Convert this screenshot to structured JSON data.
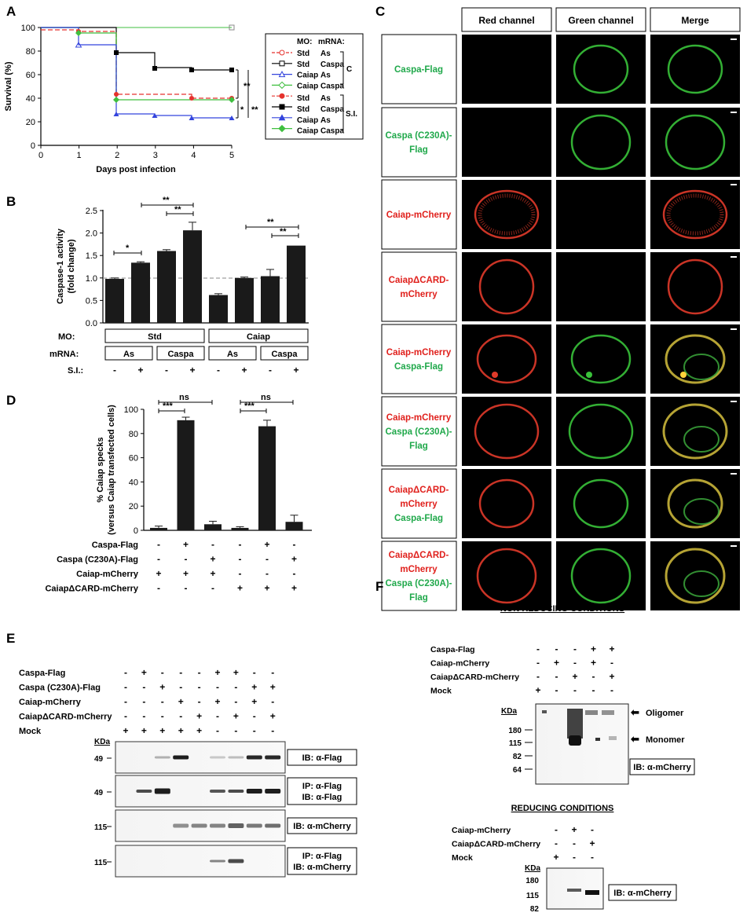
{
  "panels": {
    "A": "A",
    "B": "B",
    "C": "C",
    "D": "D",
    "E": "E",
    "F": "F"
  },
  "panelA": {
    "ylabel": "Survival (%)",
    "xlabel": "Days post infection",
    "xticks": [
      "0",
      "1",
      "2",
      "3",
      "4",
      "5"
    ],
    "yticks": [
      "0",
      "20",
      "40",
      "60",
      "80",
      "100"
    ],
    "legend_header": {
      "mo": "MO:",
      "mrna": "mRNA:"
    },
    "legend": [
      {
        "mo": "Std",
        "mrna": "As"
      },
      {
        "mo": "Std",
        "mrna": "Caspa"
      },
      {
        "mo": "Caiap",
        "mrna": "As"
      },
      {
        "mo": "Caiap",
        "mrna": "Caspa"
      },
      {
        "mo": "Std",
        "mrna": "As"
      },
      {
        "mo": "Std",
        "mrna": "Caspa"
      },
      {
        "mo": "Caiap",
        "mrna": "As"
      },
      {
        "mo": "Caiap",
        "mrna": "Caspa"
      }
    ],
    "group_c": "C",
    "group_si": "S.I.",
    "sig": [
      "**",
      "*",
      "**"
    ],
    "colors": {
      "red": "#e5322d",
      "black": "#000000",
      "blue": "#3344dd",
      "green": "#3fbf3f"
    }
  },
  "panelB": {
    "ylabel1": "Caspase-1 activity",
    "ylabel2": "(fold change)",
    "yticks": [
      "0.0",
      "0.5",
      "1.0",
      "1.5",
      "2.0",
      "2.5"
    ],
    "mo_label": "MO:",
    "mrna_label": "mRNA:",
    "si_label": "S.I.:",
    "mo": [
      "Std",
      "Caiap"
    ],
    "mrna": [
      "As",
      "Caspa",
      "As",
      "Caspa"
    ],
    "si": [
      "-",
      "+",
      "-",
      "+",
      "-",
      "+",
      "-",
      "+"
    ],
    "sig": [
      "*",
      "**",
      "**",
      "**",
      "**"
    ]
  },
  "panelC": {
    "columns": [
      "Red channel",
      "Green channel",
      "Merge"
    ],
    "rows": [
      {
        "line1": "Caspa-Flag",
        "line1_color": "green"
      },
      {
        "line1": "Caspa (C230A)-",
        "line2": "Flag",
        "line1_color": "green",
        "line2_color": "green"
      },
      {
        "line1": "Caiap-mCherry",
        "line1_color": "red"
      },
      {
        "line1": "CaiapΔCARD-",
        "line2": "mCherry",
        "line1_color": "red",
        "line2_color": "red"
      },
      {
        "line1": "Caiap-mCherry",
        "line2": "Caspa-Flag",
        "line1_color": "red",
        "line2_color": "green"
      },
      {
        "line1": "Caiap-mCherry",
        "line2": "Caspa (C230A)-",
        "line3": "Flag",
        "line1_color": "red",
        "line2_color": "green",
        "line3_color": "green"
      },
      {
        "line1": "CaiapΔCARD-",
        "line2": "mCherry",
        "line3": "Caspa-Flag",
        "line1_color": "red",
        "line2_color": "red",
        "line3_color": "green"
      },
      {
        "line1": "CaiapΔCARD-",
        "line2": "mCherry",
        "line3": "Caspa (C230A)-",
        "line4": "Flag",
        "line1_color": "red",
        "line2_color": "red",
        "line3_color": "green",
        "line4_color": "green"
      }
    ]
  },
  "panelD": {
    "ylabel1": "% Caiap specks",
    "ylabel2": "(versus Caiap transfected cells)",
    "yticks": [
      "0",
      "20",
      "40",
      "60",
      "80",
      "100"
    ],
    "rows": [
      {
        "label": "Caspa-Flag",
        "signs": [
          "-",
          "+",
          "-",
          "-",
          "+",
          "-"
        ]
      },
      {
        "label": "Caspa (C230A)-Flag",
        "signs": [
          "-",
          "-",
          "+",
          "-",
          "-",
          "+"
        ]
      },
      {
        "label": "Caiap-mCherry",
        "signs": [
          "+",
          "+",
          "+",
          "-",
          "-",
          "-"
        ]
      },
      {
        "label": "CaiapΔCARD-mCherry",
        "signs": [
          "-",
          "-",
          "-",
          "+",
          "+",
          "+"
        ]
      }
    ],
    "sig": [
      "***",
      "ns",
      "***",
      "ns"
    ]
  },
  "panelE": {
    "rows": [
      {
        "label": "Caspa-Flag",
        "signs": [
          "-",
          "+",
          "-",
          "-",
          "-",
          "+",
          "+",
          "-",
          "-"
        ]
      },
      {
        "label": "Caspa (C230A)-Flag",
        "signs": [
          "-",
          "-",
          "+",
          "-",
          "-",
          "-",
          "-",
          "+",
          "+"
        ]
      },
      {
        "label": "Caiap-mCherry",
        "signs": [
          "-",
          "-",
          "-",
          "+",
          "-",
          "+",
          "-",
          "+",
          "-"
        ]
      },
      {
        "label": "CaiapΔCARD-mCherry",
        "signs": [
          "-",
          "-",
          "-",
          "-",
          "+",
          "-",
          "+",
          "-",
          "+"
        ]
      },
      {
        "label": "Mock",
        "signs": [
          "+",
          "+",
          "+",
          "+",
          "+",
          "-",
          "-",
          "-",
          "-"
        ]
      }
    ],
    "kda": "KDa",
    "blots": [
      {
        "mw": "49",
        "line1": "IB: α-Flag",
        "line2": ""
      },
      {
        "mw": "49",
        "line1": "IP: α-Flag",
        "line2": "IB: α-Flag"
      },
      {
        "mw": "115",
        "line1": "IB: α-mCherry",
        "line2": ""
      },
      {
        "mw": "115",
        "line1": "IP: α-Flag",
        "line2": "IB: α-mCherry"
      }
    ]
  },
  "panelF": {
    "title_nonred": "NON REDUCING CONDITIONS",
    "title_red": "REDUCING CONDITIONS",
    "nonred_rows": [
      {
        "label": "Caspa-Flag",
        "signs": [
          "-",
          "-",
          "-",
          "+",
          "+"
        ]
      },
      {
        "label": "Caiap-mCherry",
        "signs": [
          "-",
          "+",
          "-",
          "+",
          "-"
        ]
      },
      {
        "label": "CaiapΔCARD-mCherry",
        "signs": [
          "-",
          "-",
          "+",
          "-",
          "+"
        ]
      },
      {
        "label": "Mock",
        "signs": [
          "+",
          "-",
          "-",
          "-",
          "-"
        ]
      }
    ],
    "red_rows": [
      {
        "label": "Caiap-mCherry",
        "signs": [
          "-",
          "+",
          "-"
        ]
      },
      {
        "label": "CaiapΔCARD-mCherry",
        "signs": [
          "-",
          "-",
          "+"
        ]
      },
      {
        "label": "Mock",
        "signs": [
          "+",
          "-",
          "-"
        ]
      }
    ],
    "kda": "KDa",
    "nonred_mw": [
      "180",
      "115",
      "82",
      "64"
    ],
    "red_mw": [
      "180",
      "115",
      "82"
    ],
    "oligomer": "Oligomer",
    "monomer": "Monomer",
    "ib": "IB: α-mCherry"
  }
}
